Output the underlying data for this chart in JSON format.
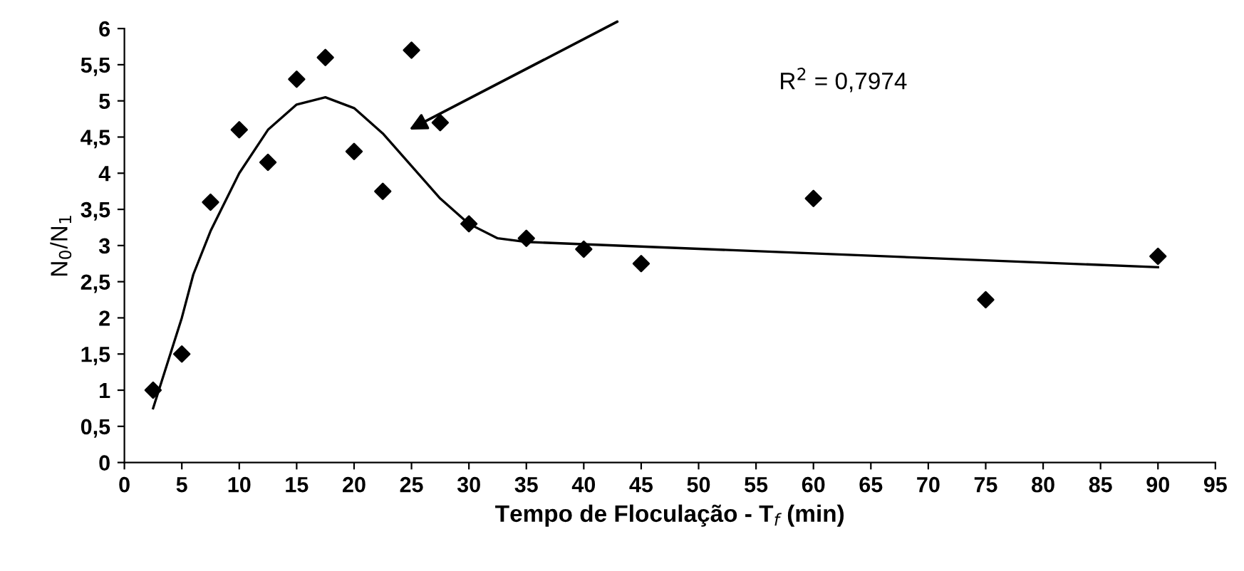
{
  "chart_data": {
    "type": "scatter",
    "xlabel": "Tempo de Floculação - T$_{f}$ (min)",
    "ylabel": "N$_{0}$/N$_{1}$",
    "annotations": [
      "R$^{2}$ = 0,7974"
    ],
    "series": [
      {
        "marker": "diamond",
        "color": "#000000",
        "x": [
          2.5,
          5,
          7.5,
          10,
          12.5,
          15,
          17.5,
          20,
          22.5,
          25,
          27.5,
          30,
          35,
          40,
          45,
          60,
          75,
          90
        ],
        "values": [
          1.0,
          1.5,
          3.6,
          4.6,
          4.15,
          5.3,
          5.6,
          4.3,
          3.75,
          5.7,
          4.7,
          3.3,
          3.1,
          2.95,
          2.75,
          3.65,
          2.25,
          2.85
        ]
      },
      {
        "type": "line",
        "marker": "none",
        "color": "#000000",
        "x": [
          2.5,
          4,
          5,
          6,
          7.5,
          10,
          12.5,
          15,
          17.5,
          20,
          22.5,
          25,
          27.5,
          30,
          32.5,
          35,
          90
        ],
        "values": [
          0.75,
          1.5,
          2.0,
          2.6,
          3.2,
          4.0,
          4.6,
          4.95,
          5.05,
          4.9,
          4.55,
          4.1,
          3.65,
          3.3,
          3.1,
          3.05,
          2.7
        ]
      }
    ],
    "xlim": [
      0,
      95
    ],
    "xticks": [
      0,
      5,
      10,
      15,
      20,
      25,
      30,
      35,
      40,
      45,
      50,
      55,
      60,
      65,
      70,
      75,
      80,
      85,
      90,
      95
    ],
    "ylim": [
      0,
      6
    ],
    "yticks": [
      0,
      {
        "value": 0.5,
        "label": "0,5"
      },
      1,
      {
        "value": 1.5,
        "label": "1,5"
      },
      2,
      {
        "value": 2.5,
        "label": "2,5"
      },
      3,
      {
        "value": 3.5,
        "label": "3,5"
      },
      4,
      {
        "value": 4.5,
        "label": "4,5"
      },
      5,
      {
        "value": 5.5,
        "label": "5,5"
      },
      6
    ],
    "grid": false,
    "legend": false
  }
}
